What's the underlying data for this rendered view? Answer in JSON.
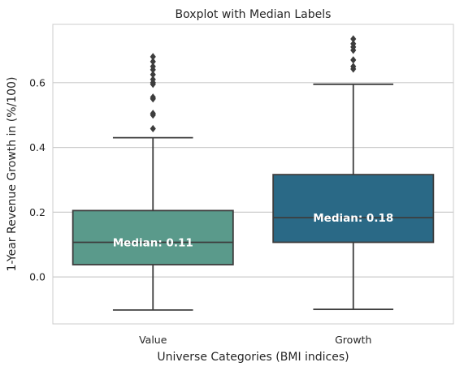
{
  "chart_data": {
    "type": "boxplot",
    "title": "Boxplot with Median Labels",
    "xlabel": "Universe Categories (BMI indices)",
    "ylabel": "1-Year Revenue Growth in (%/100)",
    "ylim": [
      -0.145,
      0.78
    ],
    "yticks": [
      0.0,
      0.2,
      0.4,
      0.6
    ],
    "ytick_labels": [
      "0.0",
      "0.2",
      "0.4",
      "0.6"
    ],
    "grid": true,
    "categories": [
      "Value",
      "Growth"
    ],
    "boxes": [
      {
        "category": "Value",
        "color": "#5a9a8b",
        "whisker_low": -0.102,
        "q1": 0.038,
        "median": 0.107,
        "q3": 0.205,
        "whisker_high": 0.43,
        "outliers": [
          0.458,
          0.5,
          0.505,
          0.55,
          0.555,
          0.595,
          0.6,
          0.61,
          0.625,
          0.64,
          0.65,
          0.665,
          0.68
        ],
        "median_label": "Median: 0.11"
      },
      {
        "category": "Growth",
        "color": "#2a6986",
        "whisker_low": -0.1,
        "q1": 0.107,
        "median": 0.183,
        "q3": 0.316,
        "whisker_high": 0.595,
        "outliers": [
          0.642,
          0.65,
          0.67,
          0.7,
          0.71,
          0.72,
          0.735
        ],
        "median_label": "Median: 0.18"
      }
    ]
  }
}
